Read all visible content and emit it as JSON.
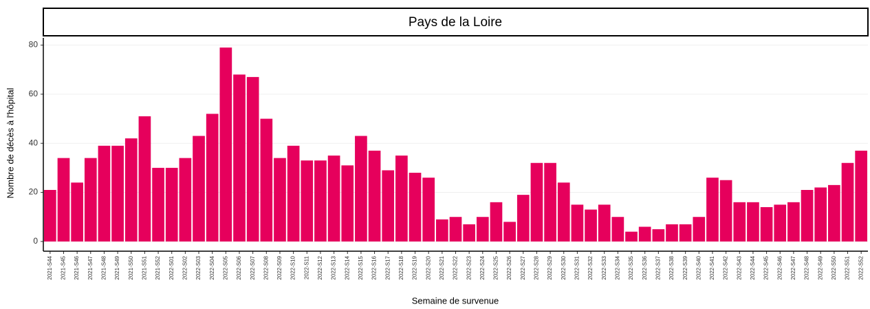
{
  "chart_data": {
    "type": "bar",
    "title": "Pays de la Loire",
    "x_label": "Semaine de survenue",
    "y_label": "Nombre de décès à l'hôpital",
    "categories": [
      "2021-S44",
      "2021-S45",
      "2021-S46",
      "2021-S47",
      "2021-S48",
      "2021-S49",
      "2021-S50",
      "2021-S51",
      "2021-S52",
      "2022-S01",
      "2022-S02",
      "2022-S03",
      "2022-S04",
      "2022-S05",
      "2022-S06",
      "2022-S07",
      "2022-S08",
      "2022-S09",
      "2022-S10",
      "2022-S11",
      "2022-S12",
      "2022-S13",
      "2022-S14",
      "2022-S15",
      "2022-S16",
      "2022-S17",
      "2022-S18",
      "2022-S19",
      "2022-S20",
      "2022-S21",
      "2022-S22",
      "2022-S23",
      "2022-S24",
      "2022-S25",
      "2022-S26",
      "2022-S27",
      "2022-S28",
      "2022-S29",
      "2022-S30",
      "2022-S31",
      "2022-S32",
      "2022-S33",
      "2022-S34",
      "2022-S35",
      "2022-S36",
      "2022-S37",
      "2022-S38",
      "2022-S39",
      "2022-S40",
      "2022-S41",
      "2022-S42",
      "2022-S43",
      "2022-S44",
      "2022-S45",
      "2022-S46",
      "2022-S47",
      "2022-S48",
      "2022-S49",
      "2022-S50",
      "2022-S51",
      "2022-S52"
    ],
    "values": [
      21,
      34,
      24,
      34,
      39,
      39,
      42,
      51,
      30,
      30,
      34,
      43,
      52,
      79,
      68,
      67,
      50,
      34,
      39,
      33,
      33,
      35,
      31,
      43,
      37,
      29,
      35,
      28,
      26,
      9,
      10,
      7,
      10,
      16,
      8,
      19,
      32,
      32,
      24,
      15,
      13,
      15,
      10,
      4,
      6,
      5,
      7,
      7,
      10,
      26,
      25,
      16,
      16,
      14,
      15,
      16,
      21,
      22,
      23,
      32,
      37
    ],
    "color": "#e6005c",
    "ylim": [
      -3.95,
      82.95
    ],
    "yticks": [
      0,
      20,
      40,
      60,
      80
    ],
    "grid": true
  }
}
